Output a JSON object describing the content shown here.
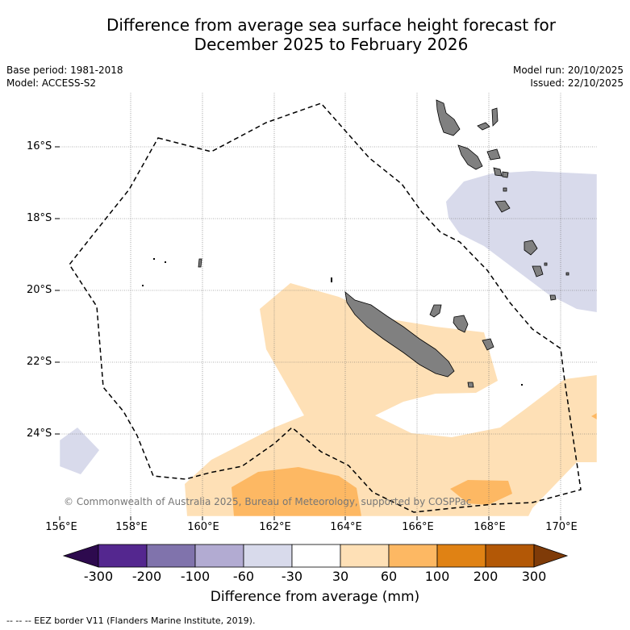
{
  "title_line1": "Difference from average sea surface height forecast for",
  "title_line2": "December 2025 to February 2026",
  "meta_left": {
    "base_period": "Base period: 1981-2018",
    "model": "Model: ACCESS-S2"
  },
  "meta_right": {
    "model_run": "Model run: 20/10/2025",
    "issued": "Issued: 22/10/2025"
  },
  "map": {
    "lon_ticks": [
      "156°E",
      "158°E",
      "160°E",
      "162°E",
      "164°E",
      "166°E",
      "168°E",
      "170°E"
    ],
    "lat_ticks": [
      "16°S",
      "18°S",
      "20°S",
      "22°S",
      "24°S"
    ],
    "copyright": "© Commonwealth of Australia 2025, Bureau of Meteorology, supported by COSPPac",
    "land_color": "#808080",
    "eez_style": "dashed"
  },
  "colorbar": {
    "ticks": [
      "-300",
      "-200",
      "-100",
      "-60",
      "-30",
      "30",
      "60",
      "100",
      "200",
      "300"
    ],
    "colors": [
      "#2d0a4e",
      "#54278f",
      "#8073ac",
      "#b2abd2",
      "#d8daeb",
      "#ffffff",
      "#fee0b6",
      "#fdb863",
      "#e08214",
      "#b35806",
      "#7f3b08"
    ],
    "label": "Difference from average (mm)"
  },
  "footer": "--  --  -- EEZ border V11 (Flanders Marine Institute, 2019)."
}
